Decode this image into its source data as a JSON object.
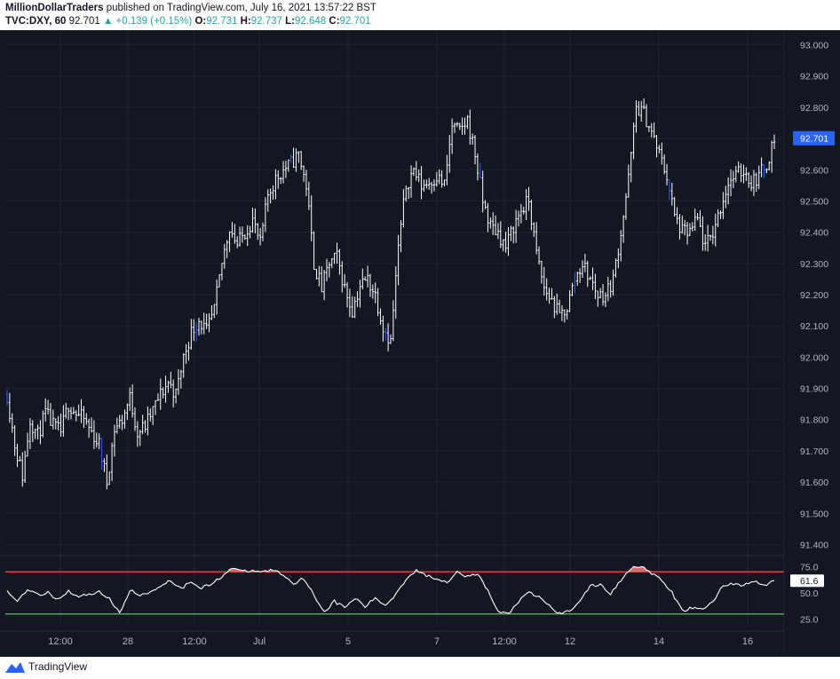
{
  "header": {
    "publisher": "MillionDollarTraders",
    "published_text": "published on TradingView.com, July 16, 2021 13:57:22 BST",
    "symbol": "TVC:DXY, 60",
    "last": "92.701",
    "change": "▲ +0.139 (+0.15%)",
    "open_label": "O:",
    "open": "92.731",
    "high_label": "H:",
    "high": "92.737",
    "low_label": "L:",
    "low": "92.648",
    "close_label": "C:",
    "close": "92.701"
  },
  "footer": {
    "brand": "TradingView"
  },
  "colors": {
    "background": "#131722",
    "candle": "#ffffff",
    "candle_accent": "#2962ff",
    "price_tag": "#2962ff",
    "rsi_line": "#ffffff",
    "rsi_upper": "#ef5350",
    "rsi_lower": "#66bb6a",
    "rsi_overbought_fill": "#f77c80",
    "rsi_oversold_fill": "#66bb6a"
  },
  "chart_data": [
    {
      "type": "candlestick",
      "symbol": "TVC:DXY",
      "interval": "60",
      "yticks": [
        "93.000",
        "92.900",
        "92.800",
        "92.700",
        "92.600",
        "92.500",
        "92.400",
        "92.300",
        "92.200",
        "92.100",
        "92.000",
        "91.900",
        "91.800",
        "91.700",
        "91.600",
        "91.500",
        "91.400"
      ],
      "ylim": [
        91.37,
        93.03
      ],
      "xticks": [
        "12:00",
        "28",
        "12:00",
        "Jul",
        "5",
        "7",
        "12:00",
        "12",
        "14",
        "16"
      ],
      "last_price": "92.701",
      "close_path": [
        [
          0,
          91.88
        ],
        [
          3,
          91.72
        ],
        [
          6,
          91.62
        ],
        [
          9,
          91.8
        ],
        [
          12,
          91.75
        ],
        [
          15,
          91.82
        ],
        [
          18,
          91.78
        ],
        [
          21,
          91.76
        ],
        [
          24,
          91.85
        ],
        [
          27,
          91.82
        ],
        [
          30,
          91.8
        ],
        [
          33,
          91.76
        ],
        [
          36,
          91.72
        ],
        [
          39,
          91.6
        ],
        [
          42,
          91.77
        ],
        [
          45,
          91.8
        ],
        [
          48,
          91.87
        ],
        [
          51,
          91.76
        ],
        [
          54,
          91.78
        ],
        [
          57,
          91.83
        ],
        [
          60,
          91.88
        ],
        [
          63,
          91.92
        ],
        [
          66,
          91.88
        ],
        [
          69,
          92.0
        ],
        [
          72,
          92.08
        ],
        [
          75,
          92.12
        ],
        [
          78,
          92.08
        ],
        [
          81,
          92.15
        ],
        [
          84,
          92.3
        ],
        [
          87,
          92.42
        ],
        [
          90,
          92.36
        ],
        [
          93,
          92.4
        ],
        [
          96,
          92.44
        ],
        [
          99,
          92.36
        ],
        [
          102,
          92.52
        ],
        [
          105,
          92.57
        ],
        [
          108,
          92.6
        ],
        [
          111,
          92.62
        ],
        [
          114,
          92.65
        ],
        [
          117,
          92.55
        ],
        [
          120,
          92.3
        ],
        [
          123,
          92.22
        ],
        [
          126,
          92.3
        ],
        [
          129,
          92.32
        ],
        [
          132,
          92.22
        ],
        [
          135,
          92.15
        ],
        [
          138,
          92.23
        ],
        [
          141,
          92.25
        ],
        [
          144,
          92.2
        ],
        [
          147,
          92.1
        ],
        [
          150,
          92.05
        ],
        [
          153,
          92.35
        ],
        [
          156,
          92.55
        ],
        [
          159,
          92.6
        ],
        [
          162,
          92.55
        ],
        [
          165,
          92.56
        ],
        [
          168,
          92.58
        ],
        [
          171,
          92.55
        ],
        [
          174,
          92.74
        ],
        [
          177,
          92.72
        ],
        [
          180,
          92.76
        ],
        [
          183,
          92.65
        ],
        [
          186,
          92.5
        ],
        [
          189,
          92.42
        ],
        [
          192,
          92.4
        ],
        [
          195,
          92.35
        ],
        [
          198,
          92.42
        ],
        [
          201,
          92.47
        ],
        [
          204,
          92.5
        ],
        [
          207,
          92.33
        ],
        [
          210,
          92.22
        ],
        [
          213,
          92.18
        ],
        [
          216,
          92.13
        ],
        [
          219,
          92.16
        ],
        [
          222,
          92.25
        ],
        [
          225,
          92.3
        ],
        [
          228,
          92.25
        ],
        [
          231,
          92.2
        ],
        [
          234,
          92.2
        ],
        [
          237,
          92.25
        ],
        [
          240,
          92.4
        ],
        [
          243,
          92.57
        ],
        [
          246,
          92.8
        ],
        [
          249,
          92.78
        ],
        [
          252,
          92.72
        ],
        [
          255,
          92.65
        ],
        [
          258,
          92.58
        ],
        [
          261,
          92.45
        ],
        [
          264,
          92.4
        ],
        [
          267,
          92.4
        ],
        [
          270,
          92.44
        ],
        [
          273,
          92.35
        ],
        [
          276,
          92.4
        ],
        [
          279,
          92.48
        ],
        [
          282,
          92.56
        ],
        [
          285,
          92.58
        ],
        [
          288,
          92.6
        ],
        [
          291,
          92.56
        ],
        [
          294,
          92.58
        ],
        [
          297,
          92.62
        ],
        [
          300,
          92.7
        ]
      ]
    },
    {
      "type": "line",
      "indicator": "RSI",
      "current_value": "61.6",
      "yticks": [
        "75.0",
        "50.0",
        "25.0"
      ],
      "ylim": [
        18,
        82
      ],
      "bands": {
        "upper": 70,
        "lower": 30
      },
      "path": [
        [
          0,
          52
        ],
        [
          4,
          42
        ],
        [
          8,
          54
        ],
        [
          12,
          48
        ],
        [
          16,
          50
        ],
        [
          20,
          44
        ],
        [
          24,
          52
        ],
        [
          28,
          46
        ],
        [
          32,
          49
        ],
        [
          36,
          51
        ],
        [
          40,
          45
        ],
        [
          44,
          30
        ],
        [
          48,
          53
        ],
        [
          52,
          47
        ],
        [
          56,
          51
        ],
        [
          60,
          57
        ],
        [
          64,
          62
        ],
        [
          68,
          54
        ],
        [
          72,
          61
        ],
        [
          76,
          55
        ],
        [
          80,
          58
        ],
        [
          84,
          66
        ],
        [
          88,
          74
        ],
        [
          92,
          70
        ],
        [
          96,
          71
        ],
        [
          100,
          70
        ],
        [
          104,
          72
        ],
        [
          108,
          67
        ],
        [
          112,
          59
        ],
        [
          116,
          64
        ],
        [
          120,
          48
        ],
        [
          124,
          32
        ],
        [
          128,
          42
        ],
        [
          132,
          36
        ],
        [
          136,
          45
        ],
        [
          140,
          37
        ],
        [
          144,
          45
        ],
        [
          148,
          38
        ],
        [
          152,
          49
        ],
        [
          156,
          63
        ],
        [
          160,
          72
        ],
        [
          164,
          66
        ],
        [
          168,
          64
        ],
        [
          172,
          60
        ],
        [
          176,
          71
        ],
        [
          180,
          65
        ],
        [
          184,
          68
        ],
        [
          188,
          52
        ],
        [
          192,
          32
        ],
        [
          196,
          30
        ],
        [
          200,
          42
        ],
        [
          204,
          50
        ],
        [
          208,
          46
        ],
        [
          212,
          38
        ],
        [
          216,
          30
        ],
        [
          220,
          33
        ],
        [
          224,
          43
        ],
        [
          228,
          56
        ],
        [
          232,
          58
        ],
        [
          236,
          49
        ],
        [
          240,
          62
        ],
        [
          244,
          74
        ],
        [
          248,
          76
        ],
        [
          252,
          68
        ],
        [
          256,
          62
        ],
        [
          260,
          50
        ],
        [
          264,
          33
        ],
        [
          268,
          36
        ],
        [
          272,
          34
        ],
        [
          276,
          42
        ],
        [
          280,
          57
        ],
        [
          284,
          59
        ],
        [
          288,
          57
        ],
        [
          292,
          61
        ],
        [
          296,
          57
        ],
        [
          300,
          61.6
        ]
      ]
    }
  ]
}
